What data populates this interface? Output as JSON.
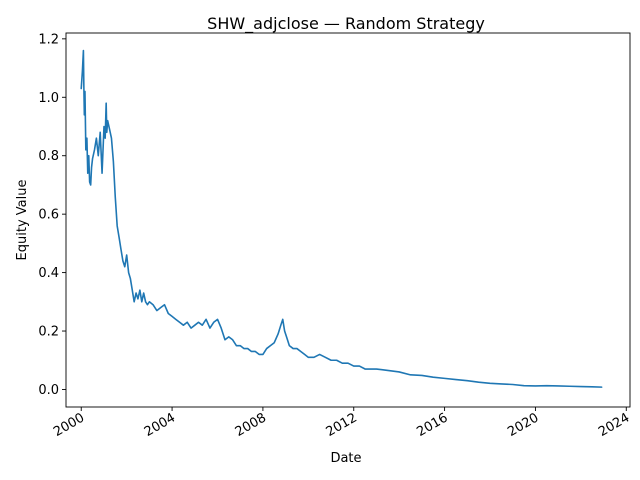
{
  "chart_data": {
    "type": "line",
    "title": "SHW_adjclose — Random Strategy",
    "xlabel": "Date",
    "ylabel": "Equity Value",
    "xlim": [
      "1999-05-01",
      "2024-03-01"
    ],
    "ylim": [
      -0.06,
      1.22
    ],
    "x_ticks": [
      "2000",
      "2004",
      "2008",
      "2012",
      "2016",
      "2020",
      "2024"
    ],
    "y_ticks": [
      "0.0",
      "0.2",
      "0.4",
      "0.6",
      "0.8",
      "1.0",
      "1.2"
    ],
    "grid": false,
    "legend": "none",
    "color": "#1f77b4",
    "series": [
      {
        "x": [
          "2000-01-01",
          "2000-01-20",
          "2000-02-05",
          "2000-02-12",
          "2000-02-20",
          "2000-03-01",
          "2000-03-15",
          "2000-04-01",
          "2000-04-15",
          "2000-05-01",
          "2000-05-15",
          "2000-06-01",
          "2000-06-15",
          "2000-07-01",
          "2000-08-01",
          "2000-09-01",
          "2000-10-01",
          "2000-11-01",
          "2000-12-01",
          "2001-01-01",
          "2001-01-20",
          "2001-02-05",
          "2001-02-15",
          "2001-03-01",
          "2001-04-01",
          "2001-05-01",
          "2001-06-01",
          "2001-07-01",
          "2001-08-01",
          "2001-09-01",
          "2001-10-01",
          "2001-11-01",
          "2001-12-01",
          "2002-01-01",
          "2002-02-01",
          "2002-03-01",
          "2002-04-01",
          "2002-05-01",
          "2002-06-01",
          "2002-07-01",
          "2002-08-01",
          "2002-09-01",
          "2002-10-01",
          "2002-11-01",
          "2002-12-01",
          "2003-01-01",
          "2003-03-01",
          "2003-05-01",
          "2003-07-01",
          "2003-09-01",
          "2003-11-01",
          "2004-01-01",
          "2004-03-01",
          "2004-05-01",
          "2004-07-01",
          "2004-09-01",
          "2004-11-01",
          "2005-01-01",
          "2005-03-01",
          "2005-05-01",
          "2005-07-01",
          "2005-09-01",
          "2005-11-01",
          "2006-01-01",
          "2006-03-01",
          "2006-05-01",
          "2006-07-01",
          "2006-09-01",
          "2006-11-01",
          "2007-01-01",
          "2007-03-01",
          "2007-05-01",
          "2007-07-01",
          "2007-09-01",
          "2007-11-01",
          "2008-01-01",
          "2008-03-01",
          "2008-05-01",
          "2008-07-01",
          "2008-09-01",
          "2008-10-15",
          "2008-11-15",
          "2008-12-15",
          "2009-01-15",
          "2009-03-01",
          "2009-05-01",
          "2009-07-01",
          "2009-09-01",
          "2009-11-01",
          "2010-01-01",
          "2010-04-01",
          "2010-07-01",
          "2010-10-01",
          "2011-01-01",
          "2011-04-01",
          "2011-07-01",
          "2011-10-01",
          "2012-01-01",
          "2012-04-01",
          "2012-07-01",
          "2012-10-01",
          "2013-01-01",
          "2013-07-01",
          "2014-01-01",
          "2014-07-01",
          "2015-01-01",
          "2015-07-01",
          "2016-01-01",
          "2016-07-01",
          "2017-01-01",
          "2017-07-01",
          "2018-01-01",
          "2018-07-01",
          "2019-01-01",
          "2019-07-01",
          "2020-01-01",
          "2020-07-01",
          "2021-01-01",
          "2021-07-01",
          "2022-01-01",
          "2022-07-01",
          "2022-12-01"
        ],
        "y": [
          1.03,
          1.09,
          1.16,
          1.04,
          0.94,
          1.02,
          0.82,
          0.86,
          0.74,
          0.8,
          0.71,
          0.7,
          0.76,
          0.79,
          0.82,
          0.86,
          0.8,
          0.88,
          0.74,
          0.9,
          0.86,
          0.98,
          0.88,
          0.92,
          0.89,
          0.86,
          0.78,
          0.66,
          0.56,
          0.52,
          0.48,
          0.44,
          0.42,
          0.46,
          0.4,
          0.38,
          0.34,
          0.3,
          0.33,
          0.31,
          0.34,
          0.3,
          0.33,
          0.3,
          0.29,
          0.3,
          0.29,
          0.27,
          0.28,
          0.29,
          0.26,
          0.25,
          0.24,
          0.23,
          0.22,
          0.23,
          0.21,
          0.22,
          0.23,
          0.22,
          0.24,
          0.21,
          0.23,
          0.24,
          0.21,
          0.17,
          0.18,
          0.17,
          0.15,
          0.15,
          0.14,
          0.14,
          0.13,
          0.13,
          0.12,
          0.12,
          0.14,
          0.15,
          0.16,
          0.19,
          0.22,
          0.24,
          0.2,
          0.18,
          0.15,
          0.14,
          0.14,
          0.13,
          0.12,
          0.11,
          0.11,
          0.12,
          0.11,
          0.1,
          0.1,
          0.09,
          0.09,
          0.08,
          0.08,
          0.07,
          0.07,
          0.07,
          0.065,
          0.06,
          0.05,
          0.048,
          0.042,
          0.038,
          0.034,
          0.03,
          0.025,
          0.021,
          0.019,
          0.017,
          0.013,
          0.012,
          0.013,
          0.012,
          0.011,
          0.01,
          0.009,
          0.008
        ]
      }
    ]
  }
}
